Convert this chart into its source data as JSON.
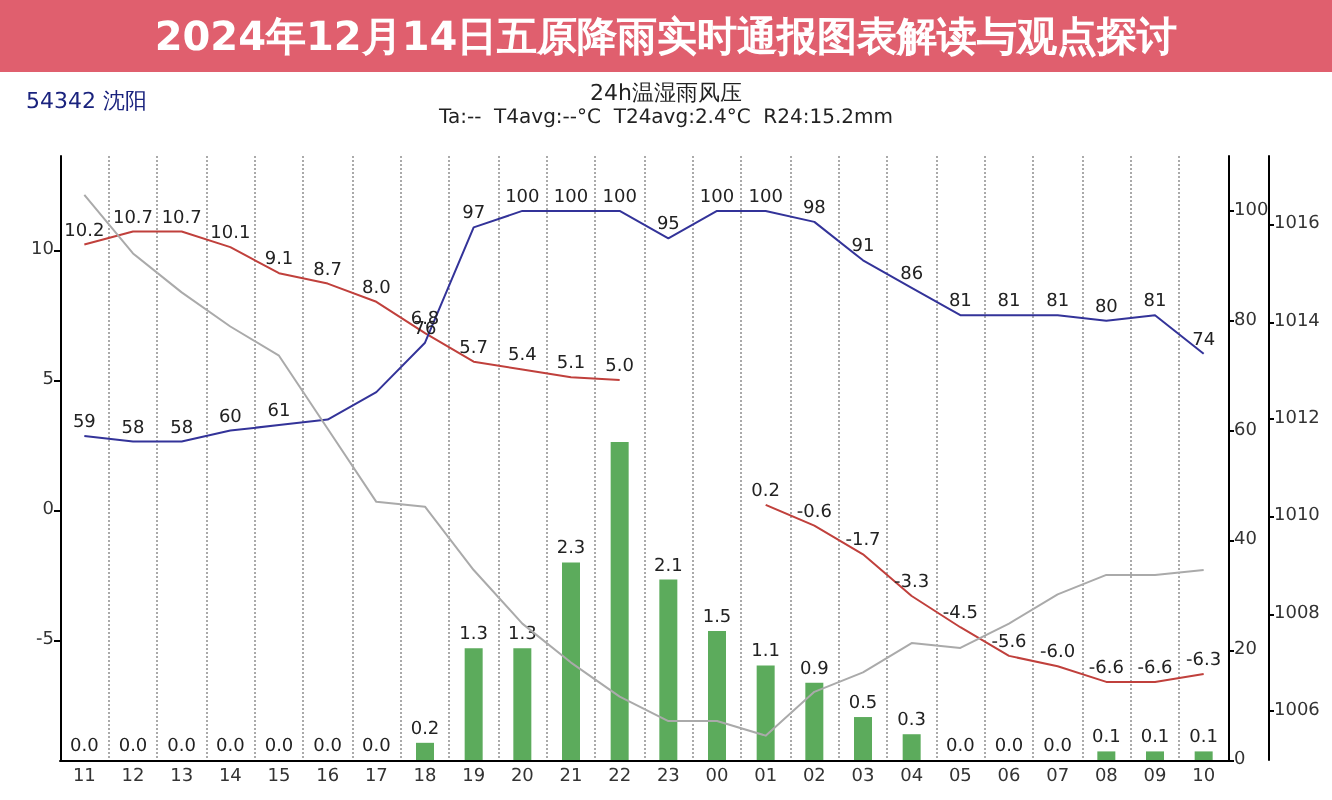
{
  "chart_data": [
    {
      "type": "line",
      "title": "24h温湿雨风压",
      "subtitle": "Ta:--  T4avg:--°C  T24avg:2.4°C  R24:15.2mm",
      "annotations": [
        "2024年12月14日五原降雨实时通报图表解读与观点探讨",
        "54342 沈阳"
      ],
      "categories": [
        "11",
        "12",
        "13",
        "14",
        "15",
        "16",
        "17",
        "18",
        "19",
        "20",
        "21",
        "22",
        "23",
        "00",
        "01",
        "02",
        "03",
        "04",
        "05",
        "06",
        "07",
        "08",
        "09",
        "10"
      ],
      "series": [
        {
          "color": "#c0403c",
          "values": [
            10.2,
            10.7,
            10.7,
            10.1,
            9.1,
            8.7,
            8.0,
            6.8,
            5.7,
            5.4,
            5.1,
            5.0,
            null,
            null,
            0.2,
            -0.6,
            -1.7,
            -3.3,
            -4.5,
            -5.6,
            -6.0,
            -6.6,
            -6.6,
            -6.3
          ],
          "value_labels": [
            "10.2",
            "10.7",
            "10.7",
            "10.1",
            "9.1",
            "8.7",
            "8.0",
            "6.8",
            "5.7",
            "5.4",
            "5.1",
            "5.0",
            null,
            null,
            "0.2",
            "-0.6",
            "-1.7",
            "-3.3",
            "-4.5",
            "-5.6",
            "-6.0",
            "-6.6",
            "-6.6",
            "-6.3"
          ]
        },
        {
          "axis": "y2",
          "color": "#333399",
          "values": [
            59,
            58,
            58,
            60,
            61,
            62,
            67,
            76,
            97,
            100,
            100,
            100,
            95,
            100,
            100,
            98,
            91,
            86,
            81,
            81,
            81,
            80,
            81,
            74
          ],
          "value_labels": [
            "59",
            "58",
            "58",
            "60",
            "61",
            null,
            null,
            "76",
            "97",
            "100",
            "100",
            "100",
            "95",
            "100",
            "100",
            "98",
            "91",
            "86",
            "81",
            "81",
            "81",
            "80",
            "81",
            "74"
          ]
        },
        {
          "axis": "y3",
          "color": "#aaaaaa",
          "values": [
            1016.6,
            1015.4,
            1014.6,
            1013.9,
            1013.3,
            1011.8,
            1010.3,
            1010.2,
            1008.9,
            1007.8,
            1007.0,
            1006.3,
            1005.8,
            1005.8,
            1005.5,
            1006.4,
            1006.8,
            1007.4,
            1007.3,
            1007.8,
            1008.4,
            1008.8,
            1008.8,
            1008.9
          ]
        }
      ],
      "ylim": [
        -9.6,
        13.6
      ],
      "yticks": [
        -5,
        0,
        5,
        10
      ],
      "y2lim": [
        0,
        110
      ],
      "y2ticks": [
        0,
        20,
        40,
        60,
        80,
        100
      ],
      "y3lim": [
        1005,
        1017.4
      ],
      "y3ticks": [
        1006,
        1008,
        1010,
        1012,
        1014,
        1016
      ],
      "grid": "x",
      "marker": "none",
      "tick_labels": "y"
    },
    {
      "type": "bar",
      "categories": [
        "11",
        "12",
        "13",
        "14",
        "15",
        "16",
        "17",
        "18",
        "19",
        "20",
        "21",
        "22",
        "23",
        "00",
        "01",
        "02",
        "03",
        "04",
        "05",
        "06",
        "07",
        "08",
        "09",
        "10"
      ],
      "color": "#5cab5c",
      "values": [
        0,
        0,
        0,
        0,
        0,
        0,
        0,
        0.2,
        1.3,
        1.3,
        2.3,
        3.7,
        2.1,
        1.5,
        1.1,
        0.9,
        0.5,
        0.3,
        0,
        0,
        0,
        0.1,
        0.1,
        0.1
      ],
      "value_labels": [
        "0.0",
        "0.0",
        "0.0",
        "0.0",
        "0.0",
        "0.0",
        "0.0",
        "0.2",
        "1.3",
        "1.3",
        "2.3",
        null,
        "2.1",
        "1.5",
        "1.1",
        "0.9",
        "0.5",
        "0.3",
        "0.0",
        "0.0",
        "0.0",
        "0.1",
        "0.1",
        "0.1"
      ]
    }
  ]
}
